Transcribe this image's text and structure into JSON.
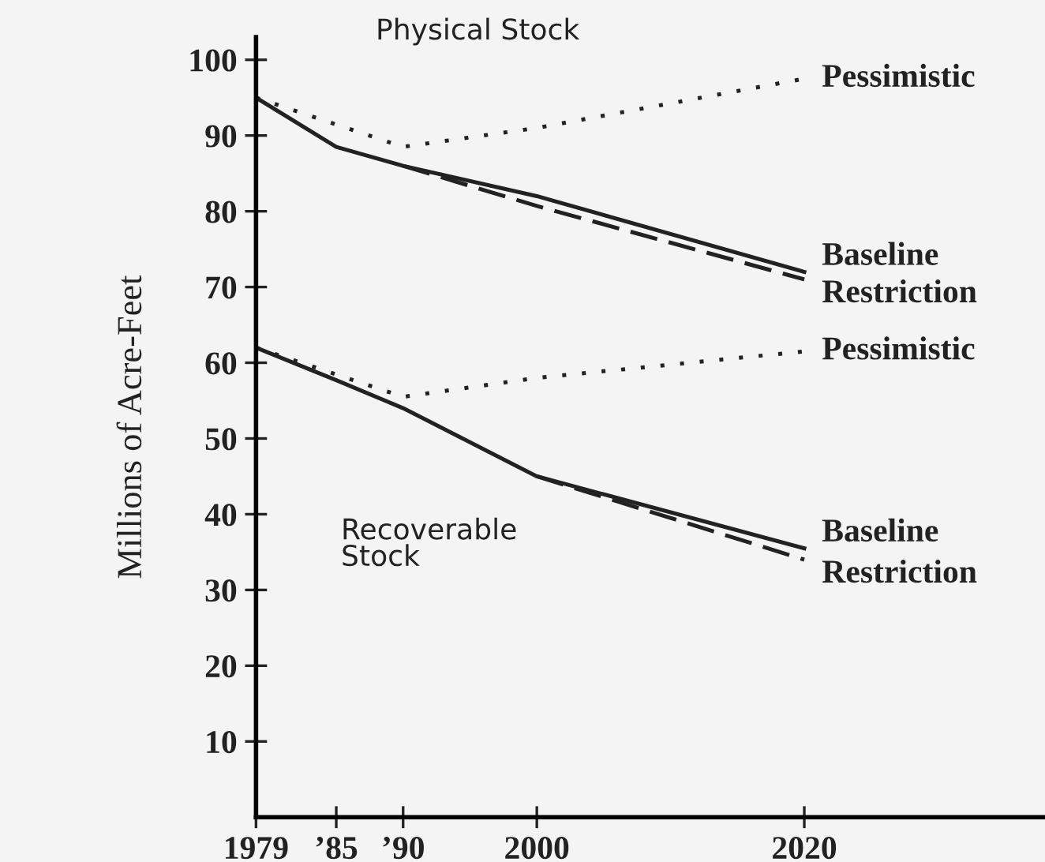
{
  "chart_data": {
    "type": "line",
    "ylabel": "Millions of Acre-Feet",
    "annotations": [
      "Physical Stock",
      "Recoverable\nStock"
    ],
    "xlim": [
      1979,
      2038
    ],
    "xticks": [
      1979,
      {
        "value": 1985,
        "label": "’85"
      },
      {
        "value": 1990,
        "label": "’90"
      },
      2000,
      2020
    ],
    "ylim": [
      0,
      103
    ],
    "yticks": [
      10,
      20,
      30,
      40,
      50,
      60,
      70,
      80,
      90,
      100
    ],
    "grid": false,
    "legend": false,
    "marker": "none",
    "series": [
      {
        "name": "Pessimistic",
        "color": "#222222",
        "line_style": "dotted",
        "x": [
          1979,
          1990,
          2000,
          2020
        ],
        "values": [
          95,
          88.5,
          91,
          97.5
        ]
      },
      {
        "name": "Baseline",
        "color": "#222222",
        "line_style": "solid",
        "x": [
          1979,
          1985,
          1990,
          2000,
          2020
        ],
        "values": [
          95,
          88.5,
          86,
          82,
          72
        ]
      },
      {
        "name": "Restriction",
        "color": "#222222",
        "line_style": "dashed",
        "x": [
          1990,
          2000,
          2020
        ],
        "values": [
          86,
          80.7,
          71
        ]
      },
      {
        "name": "Pessimistic",
        "color": "#222222",
        "line_style": "dotted",
        "x": [
          1979,
          1990,
          2000,
          2020
        ],
        "values": [
          62,
          55.5,
          58,
          61.5
        ]
      },
      {
        "name": "Baseline",
        "color": "#222222",
        "line_style": "solid",
        "x": [
          1979,
          1985,
          1990,
          2000,
          2020
        ],
        "values": [
          62,
          57.7,
          54,
          45,
          35.5
        ]
      },
      {
        "name": "Restriction",
        "color": "#222222",
        "line_style": "dashed",
        "x": [
          2000,
          2020
        ],
        "values": [
          45,
          34
        ]
      }
    ]
  }
}
